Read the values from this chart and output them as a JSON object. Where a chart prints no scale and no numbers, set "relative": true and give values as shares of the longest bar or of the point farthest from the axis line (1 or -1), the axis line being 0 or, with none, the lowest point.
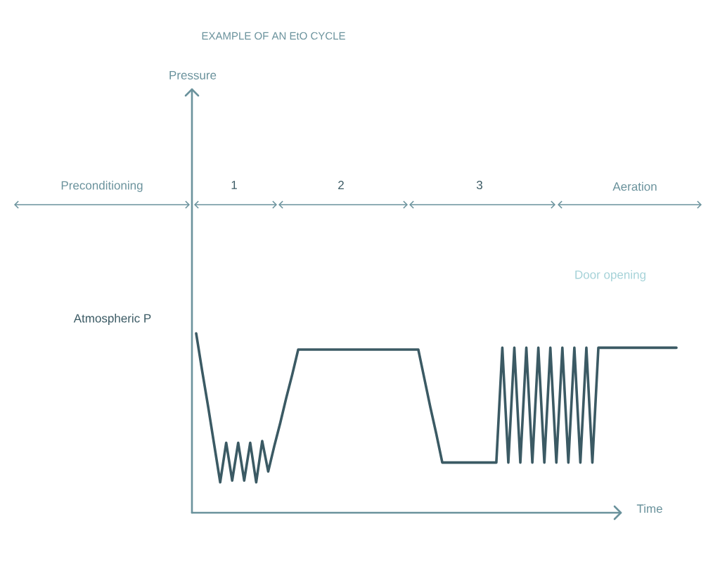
{
  "chart_data": {
    "type": "line",
    "title": "EXAMPLE OF AN EtO CYCLE",
    "xlabel": "Time",
    "relative": true,
    "categories": [
      null,
      null,
      null,
      null,
      null,
      null,
      null,
      null,
      null,
      null,
      null,
      null,
      null,
      null,
      null,
      null,
      null,
      null,
      null,
      null,
      null,
      null,
      null,
      null,
      null,
      null,
      null,
      null,
      null,
      null,
      null,
      null,
      null,
      null,
      null,
      null,
      null,
      null,
      null,
      null,
      null,
      null,
      null,
      null,
      null,
      null,
      null,
      null,
      null,
      null,
      null,
      null,
      null,
      null,
      null,
      null,
      null,
      null,
      null,
      null,
      null,
      null,
      null,
      null,
      null,
      null,
      null,
      null,
      null,
      null,
      null,
      null,
      null,
      null,
      null,
      null,
      null,
      null,
      null,
      null,
      null
    ],
    "values": [
      1,
      0.79,
      0.59,
      0.38,
      0.17,
      0.39,
      0.18,
      0.39,
      0.18,
      0.39,
      0.17,
      0.4,
      0.23,
      0.37,
      0.5,
      0.64,
      0.77,
      0.91,
      0.91,
      0.91,
      0.91,
      0.91,
      0.91,
      0.91,
      0.91,
      0.91,
      0.91,
      0.91,
      0.91,
      0.91,
      0.91,
      0.91,
      0.91,
      0.91,
      0.91,
      0.91,
      0.91,
      0.91,
      0.75,
      0.59,
      0.44,
      0.28,
      0.28,
      0.28,
      0.28,
      0.28,
      0.28,
      0.28,
      0.28,
      0.28,
      0.28,
      0.92,
      0.28,
      0.92,
      0.28,
      0.92,
      0.28,
      0.92,
      0.28,
      0.92,
      0.28,
      0.92,
      0.28,
      0.92,
      0.28,
      0.92,
      0.28,
      0.92,
      0.92,
      0.92,
      0.92,
      0.92,
      0.92,
      0.92,
      0.92,
      0.92,
      0.92,
      0.92,
      0.92,
      0.92,
      0.92
    ],
    "color": "#3b5a64",
    "annotations": [
      "Pressure",
      "Preconditioning",
      "1",
      "2",
      "3",
      "Aeration",
      "Door opening",
      "Atmospheric P"
    ]
  }
}
